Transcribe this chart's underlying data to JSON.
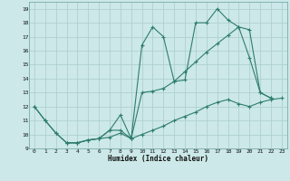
{
  "xlabel": "Humidex (Indice chaleur)",
  "bg_color": "#cce8e8",
  "grid_color": "#aacccc",
  "line_color": "#2e7d6e",
  "xlim": [
    -0.5,
    23.5
  ],
  "ylim": [
    9,
    19.5
  ],
  "xticks": [
    0,
    1,
    2,
    3,
    4,
    5,
    6,
    7,
    8,
    9,
    10,
    11,
    12,
    13,
    14,
    15,
    16,
    17,
    18,
    19,
    20,
    21,
    22,
    23
  ],
  "yticks": [
    9,
    10,
    11,
    12,
    13,
    14,
    15,
    16,
    17,
    18,
    19
  ],
  "line1_x": [
    0,
    1,
    2,
    3,
    4,
    5,
    6,
    7,
    8,
    9,
    10,
    11,
    12,
    13,
    14,
    15,
    16,
    17,
    18,
    19,
    20,
    21,
    22
  ],
  "line1_y": [
    12.0,
    11.0,
    10.1,
    9.4,
    9.4,
    9.6,
    9.7,
    10.3,
    11.4,
    9.7,
    16.4,
    17.7,
    17.0,
    13.8,
    13.9,
    18.0,
    18.0,
    19.0,
    18.2,
    17.7,
    15.5,
    13.0,
    12.6
  ],
  "line2_x": [
    0,
    1,
    2,
    3,
    4,
    5,
    6,
    7,
    8,
    9,
    10,
    11,
    12,
    13,
    14,
    15,
    16,
    17,
    18,
    19,
    20,
    21,
    22
  ],
  "line2_y": [
    12.0,
    11.0,
    10.1,
    9.4,
    9.4,
    9.6,
    9.7,
    10.3,
    10.3,
    9.7,
    13.0,
    13.1,
    13.3,
    13.8,
    14.5,
    15.2,
    15.9,
    16.5,
    17.1,
    17.7,
    17.5,
    13.0,
    12.6
  ],
  "line3_x": [
    3,
    4,
    5,
    6,
    7,
    8,
    9,
    10,
    11,
    12,
    13,
    14,
    15,
    16,
    17,
    18,
    19,
    20,
    21,
    22,
    23
  ],
  "line3_y": [
    9.4,
    9.4,
    9.6,
    9.7,
    9.8,
    10.1,
    9.7,
    10.0,
    10.3,
    10.6,
    11.0,
    11.3,
    11.6,
    12.0,
    12.3,
    12.5,
    12.2,
    12.0,
    12.3,
    12.5,
    12.6
  ]
}
